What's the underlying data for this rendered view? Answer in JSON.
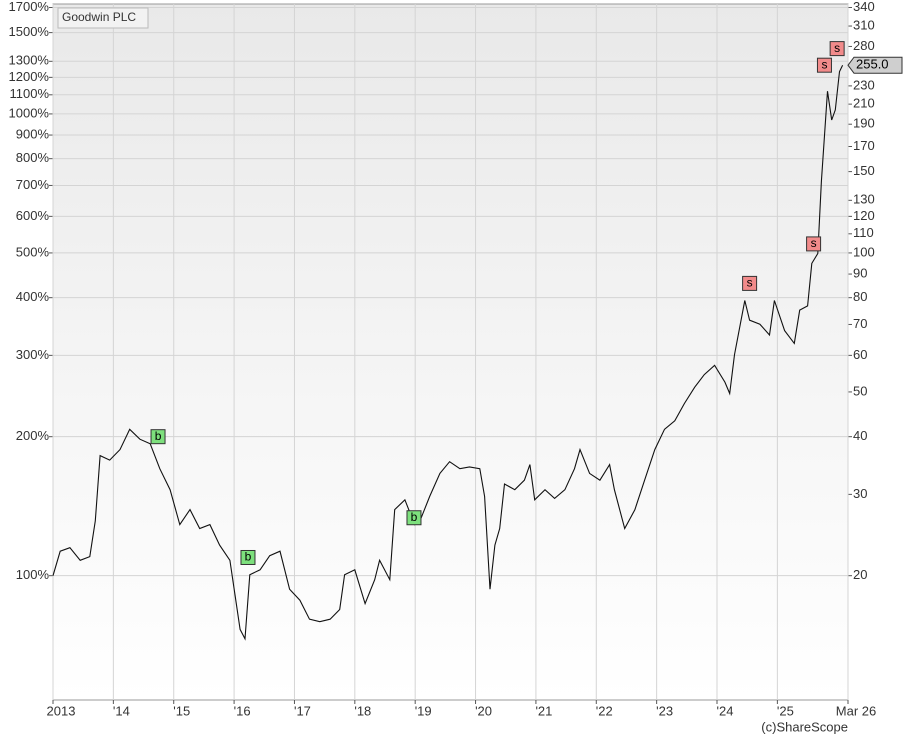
{
  "chart_data": {
    "type": "line",
    "title": "Goodwin PLC",
    "credit": "(c)ShareScope",
    "log_scale": true,
    "grid": true,
    "xlim": [
      2013,
      2026.17
    ],
    "xticks": [
      {
        "value": 2013,
        "label": "2013"
      },
      {
        "value": 2014,
        "label": "'14"
      },
      {
        "value": 2015,
        "label": "'15"
      },
      {
        "value": 2016,
        "label": "'16"
      },
      {
        "value": 2017,
        "label": "'17"
      },
      {
        "value": 2018,
        "label": "'18"
      },
      {
        "value": 2019,
        "label": "'19"
      },
      {
        "value": 2020,
        "label": "'20"
      },
      {
        "value": 2021,
        "label": "'21"
      },
      {
        "value": 2022,
        "label": "'22"
      },
      {
        "value": 2023,
        "label": "'23"
      },
      {
        "value": 2024,
        "label": "'24"
      },
      {
        "value": 2025,
        "label": "'25"
      },
      {
        "value": 2026.17,
        "label": "Mar 26"
      }
    ],
    "ylim": [
      53.8,
      1730
    ],
    "yticks": [
      {
        "value": 100,
        "label": "100%"
      },
      {
        "value": 200,
        "label": "200%"
      },
      {
        "value": 300,
        "label": "300%"
      },
      {
        "value": 400,
        "label": "400%"
      },
      {
        "value": 500,
        "label": "500%"
      },
      {
        "value": 600,
        "label": "600%"
      },
      {
        "value": 700,
        "label": "700%"
      },
      {
        "value": 800,
        "label": "800%"
      },
      {
        "value": 900,
        "label": "900%"
      },
      {
        "value": 1000,
        "label": "1000%"
      },
      {
        "value": 1100,
        "label": "1100%"
      },
      {
        "value": 1200,
        "label": "1200%"
      },
      {
        "value": 1300,
        "label": "1300%"
      },
      {
        "value": 1500,
        "label": "1500%"
      },
      {
        "value": 1700,
        "label": "1700%"
      }
    ],
    "y2lim": [
      10.76,
      346
    ],
    "y2ticks": [
      20,
      30,
      40,
      50,
      60,
      70,
      80,
      90,
      100,
      110,
      120,
      130,
      150,
      170,
      190,
      210,
      230,
      280,
      310,
      340
    ],
    "series": [
      {
        "name": "Goodwin PLC",
        "color": "#111111",
        "axis": "y2",
        "x": [
          2013.0,
          2013.12,
          2013.28,
          2013.45,
          2013.61,
          2013.7,
          2013.78,
          2013.94,
          2014.11,
          2014.27,
          2014.44,
          2014.61,
          2014.77,
          2014.94,
          2015.1,
          2015.27,
          2015.43,
          2015.6,
          2015.76,
          2015.93,
          2016.1,
          2016.18,
          2016.26,
          2016.43,
          2016.59,
          2016.76,
          2016.92,
          2017.09,
          2017.25,
          2017.42,
          2017.59,
          2017.75,
          2017.83,
          2018.0,
          2018.17,
          2018.33,
          2018.41,
          2018.58,
          2018.66,
          2018.83,
          2018.99,
          2019.08,
          2019.24,
          2019.41,
          2019.57,
          2019.74,
          2019.9,
          2020.07,
          2020.15,
          2020.24,
          2020.32,
          2020.4,
          2020.48,
          2020.65,
          2020.81,
          2020.9,
          2020.98,
          2021.15,
          2021.31,
          2021.48,
          2021.64,
          2021.73,
          2021.89,
          2022.06,
          2022.22,
          2022.3,
          2022.47,
          2022.64,
          2022.8,
          2022.97,
          2023.13,
          2023.3,
          2023.46,
          2023.63,
          2023.79,
          2023.96,
          2024.13,
          2024.21,
          2024.29,
          2024.46,
          2024.54,
          2024.71,
          2024.87,
          2024.95,
          2025.12,
          2025.28,
          2025.37,
          2025.5,
          2025.57,
          2025.67,
          2025.73,
          2025.83,
          2025.9,
          2025.96,
          2026.03,
          2026.08
        ],
        "values": [
          20,
          22.6,
          23,
          21.6,
          22,
          26.3,
          36.4,
          35.6,
          37.5,
          41.5,
          39.5,
          38.6,
          34.1,
          30.7,
          25.8,
          27.8,
          25.3,
          25.8,
          23.3,
          21.6,
          15.3,
          14.6,
          20.1,
          20.6,
          22.1,
          22.6,
          18.7,
          17.7,
          16.1,
          15.9,
          16.1,
          16.9,
          20.1,
          20.6,
          17.4,
          19.6,
          21.6,
          19.6,
          27.8,
          29.2,
          25.8,
          26.3,
          29.7,
          33.3,
          35.3,
          34.1,
          34.4,
          34.1,
          29.7,
          18.7,
          23.3,
          25.3,
          31.6,
          30.7,
          32.2,
          34.8,
          29.2,
          30.7,
          29.4,
          30.7,
          34.1,
          37.5,
          33.3,
          32.2,
          34.8,
          30.7,
          25.3,
          27.8,
          32.2,
          37.5,
          41.5,
          43.3,
          47.2,
          51.2,
          54.5,
          57.1,
          52.5,
          49.6,
          60.2,
          78.9,
          71.5,
          70.1,
          66.4,
          78.9,
          67.9,
          63.7,
          75.2,
          76.8,
          94.9,
          99.7,
          143,
          224,
          194,
          204,
          247,
          255
        ]
      }
    ],
    "trades": [
      {
        "label": "b",
        "x": 2014.74,
        "value": 40,
        "color": "#7de07d"
      },
      {
        "label": "b",
        "x": 2016.23,
        "value": 21.9,
        "color": "#7de07d"
      },
      {
        "label": "b",
        "x": 2018.98,
        "value": 26.7,
        "color": "#7de07d"
      },
      {
        "label": "s",
        "x": 2024.54,
        "value": 85.9,
        "color": "#f28b8b"
      },
      {
        "label": "s",
        "x": 2025.6,
        "value": 104.6,
        "color": "#f28b8b"
      },
      {
        "label": "s",
        "x": 2025.78,
        "value": 255,
        "color": "#f28b8b"
      },
      {
        "label": "s",
        "x": 2025.99,
        "value": 277,
        "color": "#f28b8b"
      }
    ],
    "last_price": {
      "value": 255,
      "label": "255.0"
    }
  }
}
